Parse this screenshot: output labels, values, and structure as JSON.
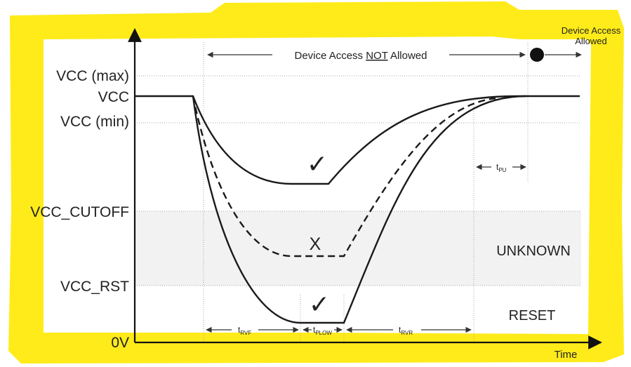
{
  "diagram": {
    "colors": {
      "highlight_border": "#ffeb1a",
      "region_fill": "#f2f2f2",
      "curve": "#1a1a1a",
      "gridline": "#a8a8a8"
    },
    "y_labels": {
      "vcc_max": "VCC (max)",
      "vcc": "VCC",
      "vcc_min": "VCC (min)",
      "vcc_cutoff": "VCC_CUTOFF",
      "vcc_rst": "VCC_RST",
      "zero": "0V"
    },
    "x_axis_label": "Time",
    "top_annotation": {
      "prefix": "Device Access ",
      "emphasis": "NOT",
      "suffix": " Allowed"
    },
    "access_allowed_label": [
      "Device Access",
      "Allowed"
    ],
    "regions": {
      "unknown": "UNKNOWN",
      "reset": "RESET"
    },
    "markers": {
      "check": "✓",
      "cross": "X"
    },
    "timing_labels": {
      "t_rvf": {
        "main": "t",
        "sub": "RVF"
      },
      "t_plow": {
        "main": "t",
        "sub": "PLOW"
      },
      "t_rvr": {
        "main": "t",
        "sub": "RVR"
      },
      "t_pu": {
        "main": "t",
        "sub": "PU"
      }
    }
  }
}
